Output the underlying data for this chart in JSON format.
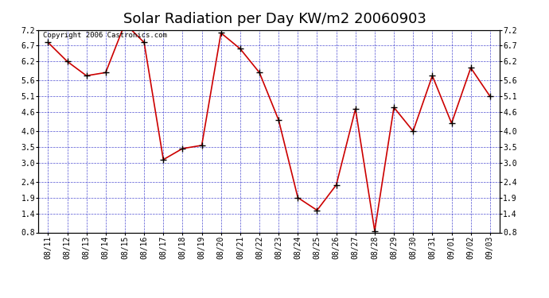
{
  "title": "Solar Radiation per Day KW/m2 20060903",
  "copyright_text": "Copyright 2006 Castronics.com",
  "dates": [
    "08/11",
    "08/12",
    "08/13",
    "08/14",
    "08/15",
    "08/16",
    "08/17",
    "08/18",
    "08/19",
    "08/20",
    "08/21",
    "08/22",
    "08/23",
    "08/24",
    "08/25",
    "08/26",
    "08/27",
    "08/28",
    "08/29",
    "08/30",
    "08/31",
    "09/01",
    "09/02",
    "09/03"
  ],
  "values": [
    6.8,
    6.2,
    5.75,
    5.85,
    7.4,
    6.8,
    3.1,
    3.45,
    3.55,
    7.1,
    6.6,
    5.85,
    4.35,
    1.9,
    1.5,
    2.3,
    4.7,
    0.85,
    4.75,
    4.0,
    5.75,
    4.25,
    6.0,
    5.1
  ],
  "line_color": "#cc0000",
  "marker_color": "#000000",
  "bg_color": "#ffffff",
  "plot_bg_color": "#ffffff",
  "grid_color": "#3333cc",
  "ylim_min": 0.8,
  "ylim_max": 7.2,
  "yticks": [
    0.8,
    1.4,
    1.9,
    2.4,
    3.0,
    3.5,
    4.0,
    4.6,
    5.1,
    5.6,
    6.2,
    6.7,
    7.2
  ],
  "ytick_labels": [
    "0.8",
    "1.4",
    "1.9",
    "2.4",
    "3.0",
    "3.5",
    "4.0",
    "4.6",
    "5.1",
    "5.6",
    "6.2",
    "6.7",
    "7.2"
  ],
  "title_fontsize": 13,
  "copyright_fontsize": 6.5,
  "tick_fontsize": 7,
  "figwidth": 6.9,
  "figheight": 3.75,
  "dpi": 100
}
